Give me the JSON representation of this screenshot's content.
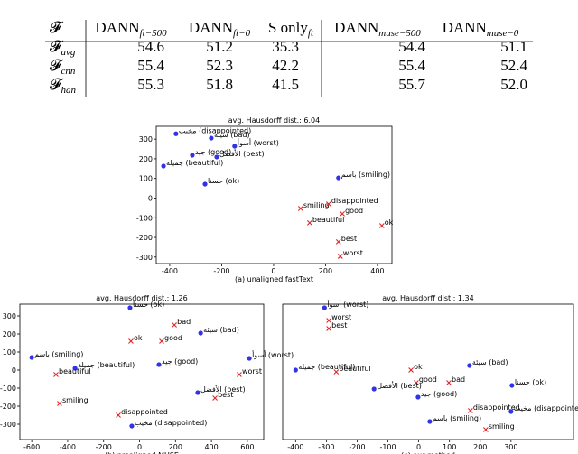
{
  "table": {
    "header": [
      {
        "text": "𝓕"
      },
      {
        "text": "DANN",
        "sub": "ft−500"
      },
      {
        "text": "DANN",
        "sub": "ft−0"
      },
      {
        "text": "S only",
        "sub": "ft"
      },
      {
        "text": "DANN",
        "sub": "muse−500"
      },
      {
        "text": "DANN",
        "sub": "muse−0"
      }
    ],
    "rows": [
      [
        {
          "text": "𝓕",
          "sub": "avg"
        },
        "54.6",
        "51.2",
        "35.3",
        "54.4",
        "51.1"
      ],
      [
        {
          "text": "𝓕",
          "sub": "cnn"
        },
        "55.4",
        "52.3",
        "42.2",
        "55.4",
        "52.4"
      ],
      [
        {
          "text": "𝓕",
          "sub": "han"
        },
        "55.3",
        "51.8",
        "41.5",
        "55.7",
        "52.0"
      ]
    ]
  },
  "chart_data": [
    {
      "type": "scatter",
      "title": "avg. Hausdorff dist.: 6.04",
      "xlabel": "(a) unaligned fastText",
      "xlim": [
        -452,
        456
      ],
      "ylim": [
        -333,
        365
      ],
      "xticks": [
        -400,
        -200,
        0,
        200,
        400
      ],
      "yticks": [
        -300,
        -200,
        -100,
        0,
        100,
        200,
        300
      ],
      "colors": {
        "circle": "#3333e6",
        "x": "#e02424"
      },
      "points": [
        {
          "x": -376,
          "y": 327,
          "label": "مخيب (disappointed)",
          "marker": "circle"
        },
        {
          "x": -240,
          "y": 305,
          "label": "سيئة (bad)",
          "marker": "circle"
        },
        {
          "x": -150,
          "y": 264,
          "label": "أسوأ (worst)",
          "marker": "circle"
        },
        {
          "x": -313,
          "y": 218,
          "label": "جيد (good)",
          "marker": "circle"
        },
        {
          "x": -219,
          "y": 209,
          "label": "الأفضل (best)",
          "marker": "circle"
        },
        {
          "x": -424,
          "y": 163,
          "label": "جميلة (beautiful)",
          "marker": "circle"
        },
        {
          "x": -264,
          "y": 71,
          "label": "حسنا (ok)",
          "marker": "circle"
        },
        {
          "x": 250,
          "y": 103,
          "label": "باسم (smiling)",
          "marker": "circle"
        },
        {
          "x": 104,
          "y": -53,
          "label": "smiling",
          "marker": "x"
        },
        {
          "x": 212,
          "y": -30,
          "label": "disappointed",
          "marker": "x"
        },
        {
          "x": 139,
          "y": -126,
          "label": "beautiful",
          "marker": "x"
        },
        {
          "x": 265,
          "y": -80,
          "label": "good",
          "marker": "x"
        },
        {
          "x": 417,
          "y": -140,
          "label": "ok",
          "marker": "x"
        },
        {
          "x": 250,
          "y": -222,
          "label": "best",
          "marker": "x"
        },
        {
          "x": 257,
          "y": -296,
          "label": "worst",
          "marker": "x"
        }
      ]
    },
    {
      "type": "scatter",
      "title": "avg. Hausdorff dist.: 1.26",
      "xlabel": "(b) prealigned MUSE",
      "xlim": [
        -666,
        691
      ],
      "ylim": [
        -385,
        365
      ],
      "xticks": [
        -600,
        -400,
        -200,
        0,
        200,
        400,
        600
      ],
      "yticks": [
        -300,
        -200,
        -100,
        0,
        100,
        200,
        300
      ],
      "colors": {
        "circle": "#3333e6",
        "x": "#e02424"
      },
      "points": [
        {
          "x": -53,
          "y": 345,
          "label": "حسنا (ok)",
          "marker": "circle"
        },
        {
          "x": 194,
          "y": 250,
          "label": "bad",
          "marker": "x"
        },
        {
          "x": 340,
          "y": 205,
          "label": "سيئة (bad)",
          "marker": "circle"
        },
        {
          "x": -48,
          "y": 160,
          "label": "ok",
          "marker": "x"
        },
        {
          "x": 123,
          "y": 160,
          "label": "good",
          "marker": "x"
        },
        {
          "x": -600,
          "y": 70,
          "label": "باسم (smiling)",
          "marker": "circle"
        },
        {
          "x": 611,
          "y": 65,
          "label": "أسوأ (worst)",
          "marker": "circle"
        },
        {
          "x": 555,
          "y": -25,
          "label": "worst",
          "marker": "x"
        },
        {
          "x": -359,
          "y": 10,
          "label": "جميلة (beautiful)",
          "marker": "circle"
        },
        {
          "x": 108,
          "y": 30,
          "label": "جيد (good)",
          "marker": "circle"
        },
        {
          "x": -465,
          "y": -25,
          "label": "beautiful",
          "marker": "x"
        },
        {
          "x": 324,
          "y": -125,
          "label": "الأفضل (best)",
          "marker": "circle"
        },
        {
          "x": 420,
          "y": -155,
          "label": "best",
          "marker": "x"
        },
        {
          "x": -445,
          "y": -185,
          "label": "smiling",
          "marker": "x"
        },
        {
          "x": -118,
          "y": -250,
          "label": "disappointed",
          "marker": "x"
        },
        {
          "x": -43,
          "y": -310,
          "label": "مخيب (disappointed)",
          "marker": "circle"
        }
      ]
    },
    {
      "type": "scatter",
      "title": "avg. Hausdorff dist.: 1.34",
      "xlabel": "(c) our method",
      "xlim": [
        -442,
        503
      ],
      "ylim": [
        -385,
        365
      ],
      "xticks": [
        -400,
        -300,
        -200,
        -100,
        0,
        100,
        200,
        300
      ],
      "colors": {
        "circle": "#3333e6",
        "x": "#e02424"
      },
      "points": [
        {
          "x": -306,
          "y": 345,
          "label": "أسوأ (worst)",
          "marker": "circle"
        },
        {
          "x": -292,
          "y": 275,
          "label": "worst",
          "marker": "x"
        },
        {
          "x": -292,
          "y": 230,
          "label": "best",
          "marker": "x"
        },
        {
          "x": -400,
          "y": 0,
          "label": "جميلة (beautiful)",
          "marker": "circle"
        },
        {
          "x": -268,
          "y": -10,
          "label": "beautiful",
          "marker": "x"
        },
        {
          "x": -25,
          "y": 0,
          "label": "ok",
          "marker": "x"
        },
        {
          "x": 165,
          "y": 25,
          "label": "سيئة (bad)",
          "marker": "circle"
        },
        {
          "x": 303,
          "y": -85,
          "label": "حسنا (ok)",
          "marker": "circle"
        },
        {
          "x": -8,
          "y": -70,
          "label": "good",
          "marker": "x"
        },
        {
          "x": 98,
          "y": -70,
          "label": "bad",
          "marker": "x"
        },
        {
          "x": -145,
          "y": -105,
          "label": "الأفضل (best)",
          "marker": "circle"
        },
        {
          "x": -2,
          "y": -150,
          "label": "جيد (good)",
          "marker": "circle"
        },
        {
          "x": 168,
          "y": -225,
          "label": "disappointed",
          "marker": "x"
        },
        {
          "x": 300,
          "y": -230,
          "label": "مخيب (disappointed)",
          "marker": "circle"
        },
        {
          "x": 36,
          "y": -285,
          "label": "باسم (smiling)",
          "marker": "circle"
        },
        {
          "x": 218,
          "y": -330,
          "label": "smiling",
          "marker": "x"
        }
      ]
    }
  ]
}
